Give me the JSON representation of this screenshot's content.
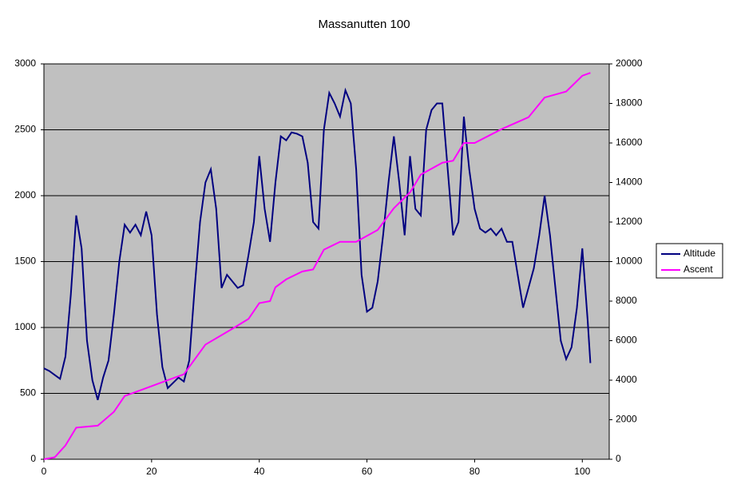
{
  "chart_data": {
    "type": "line",
    "title": "Massanutten 100",
    "xlim": [
      0,
      105
    ],
    "xticks": [
      0,
      20,
      40,
      60,
      80,
      100
    ],
    "ylim": [
      0,
      3000
    ],
    "yticks": [
      0,
      500,
      1000,
      1500,
      2000,
      2500,
      3000
    ],
    "y2lim": [
      0,
      20000
    ],
    "y2ticks": [
      0,
      2000,
      4000,
      6000,
      8000,
      10000,
      12000,
      14000,
      16000,
      18000,
      20000
    ],
    "grid": true,
    "legend": "right",
    "background": "#c0c0c0",
    "series": [
      {
        "name": "Altitude",
        "color": "#000080",
        "x": [
          0,
          1,
          2,
          3,
          4,
          5,
          6,
          7,
          8,
          9,
          10,
          11,
          12,
          13,
          14,
          15,
          16,
          17,
          18,
          19,
          20,
          21,
          22,
          23,
          24,
          25,
          26,
          27,
          28,
          29,
          30,
          31,
          32,
          33,
          34,
          35,
          36,
          37,
          38,
          39,
          40,
          41,
          42,
          43,
          44,
          45,
          46,
          47,
          48,
          49,
          50,
          51,
          52,
          53,
          54,
          55,
          56,
          57,
          58,
          59,
          60,
          61,
          62,
          63,
          64,
          65,
          66,
          67,
          68,
          69,
          70,
          71,
          72,
          73,
          74,
          75,
          76,
          77,
          78,
          79,
          80,
          81,
          82,
          83,
          84,
          85,
          86,
          87,
          88,
          89,
          90,
          91,
          92,
          93,
          94,
          95,
          96,
          97,
          98,
          99,
          100,
          101,
          101.5
        ],
        "values": [
          690,
          670,
          640,
          610,
          780,
          1250,
          1850,
          1600,
          900,
          600,
          450,
          620,
          750,
          1100,
          1500,
          1780,
          1720,
          1780,
          1700,
          1880,
          1700,
          1100,
          700,
          540,
          580,
          620,
          590,
          750,
          1300,
          1800,
          2100,
          2200,
          1900,
          1300,
          1400,
          1350,
          1300,
          1320,
          1550,
          1800,
          2300,
          1900,
          1650,
          2100,
          2450,
          2420,
          2480,
          2470,
          2450,
          2250,
          1800,
          1750,
          2500,
          2780,
          2700,
          2600,
          2800,
          2700,
          2200,
          1400,
          1120,
          1150,
          1350,
          1700,
          2100,
          2450,
          2100,
          1700,
          2300,
          1900,
          1850,
          2500,
          2650,
          2700,
          2700,
          2200,
          1700,
          1800,
          2600,
          2200,
          1900,
          1750,
          1720,
          1750,
          1700,
          1750,
          1650,
          1650,
          1400,
          1150,
          1300,
          1450,
          1700,
          2000,
          1700,
          1300,
          900,
          760,
          850,
          1150,
          1600,
          1050,
          730
        ]
      },
      {
        "name": "Ascent",
        "color": "#ff00ff",
        "axis": "y2",
        "x": [
          0,
          2,
          4,
          6,
          10,
          13,
          15,
          19,
          22,
          26,
          30,
          35,
          38,
          40,
          42,
          43,
          45,
          48,
          50,
          52,
          55,
          58,
          62,
          65,
          68,
          70,
          74,
          76,
          78,
          80,
          85,
          90,
          93,
          97,
          100,
          101.5
        ],
        "values": [
          0,
          100,
          700,
          1600,
          1700,
          2400,
          3200,
          3600,
          3900,
          4300,
          5800,
          6600,
          7100,
          7900,
          8000,
          8700,
          9100,
          9500,
          9600,
          10600,
          11000,
          11000,
          11600,
          12700,
          13500,
          14400,
          15000,
          15100,
          16000,
          16000,
          16700,
          17300,
          18300,
          18600,
          19400,
          19550
        ]
      }
    ]
  }
}
